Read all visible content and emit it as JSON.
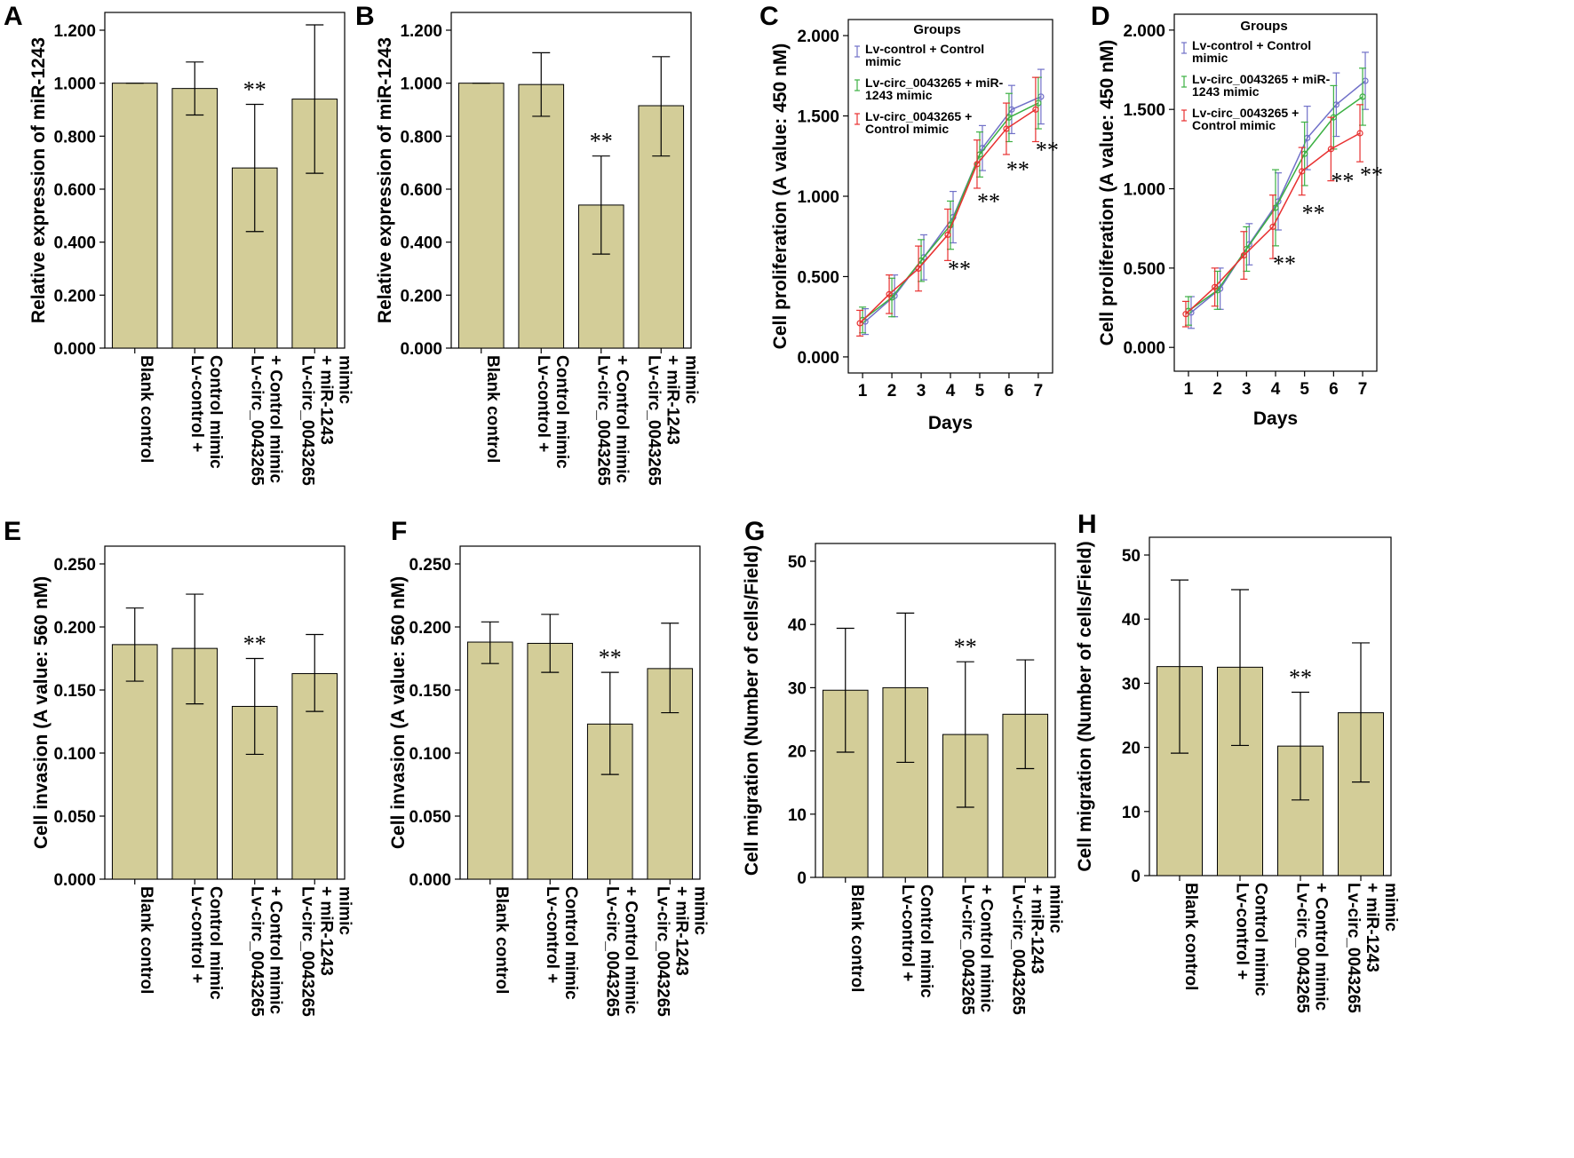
{
  "figure": {
    "colors": {
      "bar_fill": "#d3cd98",
      "blue": "#7070c8",
      "green": "#3cb043",
      "red": "#e83030",
      "axis": "#000000"
    },
    "significance_mark": "**"
  },
  "chart_data": [
    {
      "id": "A",
      "panel_label": "A",
      "type": "bar",
      "ylabel": "Relative expression of miR-1243",
      "ylim": [
        0,
        1.2
      ],
      "yticks": [
        "0.000",
        "0.200",
        "0.400",
        "0.600",
        "0.800",
        "1.000",
        "1.200"
      ],
      "categories": [
        [
          "Blank control"
        ],
        [
          "Lv-control +",
          "Control mimic"
        ],
        [
          "Lv-circ_0043265",
          "+ Control mimic"
        ],
        [
          "Lv-circ_0043265",
          "+ miR-1243",
          "mimic"
        ]
      ],
      "values": [
        1.0,
        0.98,
        0.68,
        0.94
      ],
      "err_low": [
        1.0,
        0.88,
        0.44,
        0.66
      ],
      "err_high": [
        1.0,
        1.08,
        0.92,
        1.22
      ],
      "significant": [
        false,
        false,
        true,
        false
      ]
    },
    {
      "id": "B",
      "panel_label": "B",
      "type": "bar",
      "ylabel": "Relative expression of miR-1243",
      "ylim": [
        0,
        1.2
      ],
      "yticks": [
        "0.000",
        "0.200",
        "0.400",
        "0.600",
        "0.800",
        "1.000",
        "1.200"
      ],
      "categories": [
        [
          "Blank control"
        ],
        [
          "Lv-control +",
          "Control mimic"
        ],
        [
          "Lv-circ_0043265",
          "+ Control mimic"
        ],
        [
          "Lv-circ_0043265",
          "+ miR-1243",
          "mimic"
        ]
      ],
      "values": [
        1.0,
        0.995,
        0.54,
        0.915
      ],
      "err_low": [
        1.0,
        0.875,
        0.355,
        0.725
      ],
      "err_high": [
        1.0,
        1.115,
        0.725,
        1.1
      ],
      "significant": [
        false,
        false,
        true,
        false
      ]
    },
    {
      "id": "C",
      "panel_label": "C",
      "type": "line",
      "ylabel": "Cell proliferation (A value: 450 nM)",
      "xlabel": "Days",
      "ylim": [
        -0.1,
        2.1
      ],
      "yticks": [
        "0.000",
        "0.500",
        "1.000",
        "1.500",
        "2.000"
      ],
      "x": [
        1,
        2,
        3,
        4,
        5,
        6,
        7
      ],
      "xticks": [
        "1",
        "2",
        "3",
        "4",
        "5",
        "6",
        "7"
      ],
      "legend": {
        "title": "Groups",
        "entries": [
          [
            "Lv-control + Control",
            "mimic"
          ],
          [
            "Lv-circ_0043265 + miR-",
            "1243 mimic"
          ],
          [
            "Lv-circ_0043265 +",
            "Control mimic"
          ]
        ]
      },
      "series": [
        {
          "name": "Lv-control + Control mimic",
          "color": "#7070c8",
          "values": [
            0.22,
            0.38,
            0.62,
            0.87,
            1.3,
            1.54,
            1.62
          ],
          "err": [
            0.08,
            0.13,
            0.14,
            0.16,
            0.14,
            0.15,
            0.17
          ]
        },
        {
          "name": "Lv-circ_0043265 + miR-1243 mimic",
          "color": "#3cb043",
          "values": [
            0.23,
            0.37,
            0.6,
            0.82,
            1.26,
            1.49,
            1.58
          ],
          "err": [
            0.08,
            0.12,
            0.13,
            0.15,
            0.14,
            0.15,
            0.16
          ]
        },
        {
          "name": "Lv-circ_0043265 + Control mimic",
          "color": "#e83030",
          "values": [
            0.21,
            0.39,
            0.55,
            0.76,
            1.2,
            1.42,
            1.54
          ],
          "err": [
            0.08,
            0.12,
            0.14,
            0.16,
            0.15,
            0.16,
            0.2
          ]
        }
      ],
      "significant_x": [
        4,
        5,
        6,
        7
      ],
      "sig_y": [
        0.5,
        0.92,
        1.12,
        1.24
      ]
    },
    {
      "id": "D",
      "panel_label": "D",
      "type": "line",
      "ylabel": "Cell proliferation (A value: 450 nM)",
      "xlabel": "Days",
      "ylim": [
        -0.15,
        2.1
      ],
      "yticks": [
        "0.000",
        "0.500",
        "1.000",
        "1.500",
        "2.000"
      ],
      "x": [
        1,
        2,
        3,
        4,
        5,
        6,
        7
      ],
      "xticks": [
        "1",
        "2",
        "3",
        "4",
        "5",
        "6",
        "7"
      ],
      "legend": {
        "title": "Groups",
        "entries": [
          [
            "Lv-control + Control",
            "mimic"
          ],
          [
            "Lv-circ_0043265 + miR-",
            "1243 mimic"
          ],
          [
            "Lv-circ_0043265 +",
            "Control mimic"
          ]
        ]
      },
      "series": [
        {
          "name": "Lv-control + Control mimic",
          "color": "#7070c8",
          "values": [
            0.22,
            0.37,
            0.65,
            0.92,
            1.32,
            1.53,
            1.68
          ],
          "err": [
            0.1,
            0.13,
            0.13,
            0.18,
            0.2,
            0.2,
            0.18
          ]
        },
        {
          "name": "Lv-circ_0043265 + miR-1243 mimic",
          "color": "#3cb043",
          "values": [
            0.23,
            0.36,
            0.62,
            0.88,
            1.22,
            1.45,
            1.58
          ],
          "err": [
            0.09,
            0.12,
            0.14,
            0.24,
            0.2,
            0.2,
            0.18
          ]
        },
        {
          "name": "Lv-circ_0043265 + Control mimic",
          "color": "#e83030",
          "values": [
            0.21,
            0.38,
            0.58,
            0.76,
            1.11,
            1.25,
            1.35
          ],
          "err": [
            0.08,
            0.12,
            0.15,
            0.2,
            0.15,
            0.2,
            0.18
          ]
        }
      ],
      "significant_x": [
        4,
        5,
        6,
        7
      ],
      "sig_y": [
        0.48,
        0.8,
        1.0,
        1.04
      ]
    },
    {
      "id": "E",
      "panel_label": "E",
      "type": "bar",
      "ylabel": "Cell invasion (A value: 560 nM)",
      "ylim": [
        0,
        0.25
      ],
      "yticks": [
        "0.000",
        "0.050",
        "0.100",
        "0.150",
        "0.200",
        "0.250"
      ],
      "categories": [
        [
          "Blank control"
        ],
        [
          "Lv-control +",
          "Control mimic"
        ],
        [
          "Lv-circ_0043265",
          "+ Control mimic"
        ],
        [
          "Lv-circ_0043265",
          "+ miR-1243",
          "mimic"
        ]
      ],
      "values": [
        0.186,
        0.183,
        0.137,
        0.163
      ],
      "err_low": [
        0.157,
        0.139,
        0.099,
        0.133
      ],
      "err_high": [
        0.215,
        0.226,
        0.175,
        0.194
      ],
      "significant": [
        false,
        false,
        true,
        false
      ]
    },
    {
      "id": "F",
      "panel_label": "F",
      "type": "bar",
      "ylabel": "Cell invasion (A value: 560 nM)",
      "ylim": [
        0,
        0.25
      ],
      "yticks": [
        "0.000",
        "0.050",
        "0.100",
        "0.150",
        "0.200",
        "0.250"
      ],
      "categories": [
        [
          "Blank control"
        ],
        [
          "Lv-control +",
          "Control mimic"
        ],
        [
          "Lv-circ_0043265",
          "+ Control mimic"
        ],
        [
          "Lv-circ_0043265",
          "+ miR-1243",
          "mimic"
        ]
      ],
      "values": [
        0.188,
        0.187,
        0.123,
        0.167
      ],
      "err_low": [
        0.171,
        0.164,
        0.083,
        0.132
      ],
      "err_high": [
        0.204,
        0.21,
        0.164,
        0.203
      ],
      "significant": [
        false,
        false,
        true,
        false
      ]
    },
    {
      "id": "G",
      "panel_label": "G",
      "type": "bar",
      "ylabel": "Cell migration (Number of cells/Field)",
      "ylim": [
        0,
        50
      ],
      "yticks": [
        "0",
        "10",
        "20",
        "30",
        "40",
        "50"
      ],
      "categories": [
        [
          "Blank control"
        ],
        [
          "Lv-control +",
          "Control mimic"
        ],
        [
          "Lv-circ_0043265",
          "+ Control mimic"
        ],
        [
          "Lv-circ_0043265",
          "+ miR-1243",
          "mimic"
        ]
      ],
      "values": [
        29.6,
        30.0,
        22.6,
        25.8
      ],
      "err_low": [
        19.8,
        18.2,
        11.1,
        17.2
      ],
      "err_high": [
        39.4,
        41.8,
        34.1,
        34.4
      ],
      "significant": [
        false,
        false,
        true,
        false
      ]
    },
    {
      "id": "H",
      "panel_label": "H",
      "type": "bar",
      "ylabel": "Cell migration (Number of cells/Field)",
      "ylim": [
        0,
        50
      ],
      "yticks": [
        "0",
        "10",
        "20",
        "30",
        "40",
        "50"
      ],
      "categories": [
        [
          "Blank control"
        ],
        [
          "Lv-control +",
          "Control mimic"
        ],
        [
          "Lv-circ_0043265",
          "+ Control mimic"
        ],
        [
          "Lv-circ_0043265",
          "+ miR-1243",
          "mimic"
        ]
      ],
      "values": [
        32.6,
        32.5,
        20.2,
        25.4
      ],
      "err_low": [
        19.1,
        20.3,
        11.8,
        14.6
      ],
      "err_high": [
        46.1,
        44.6,
        28.6,
        36.3
      ],
      "significant": [
        false,
        false,
        true,
        false
      ]
    }
  ]
}
